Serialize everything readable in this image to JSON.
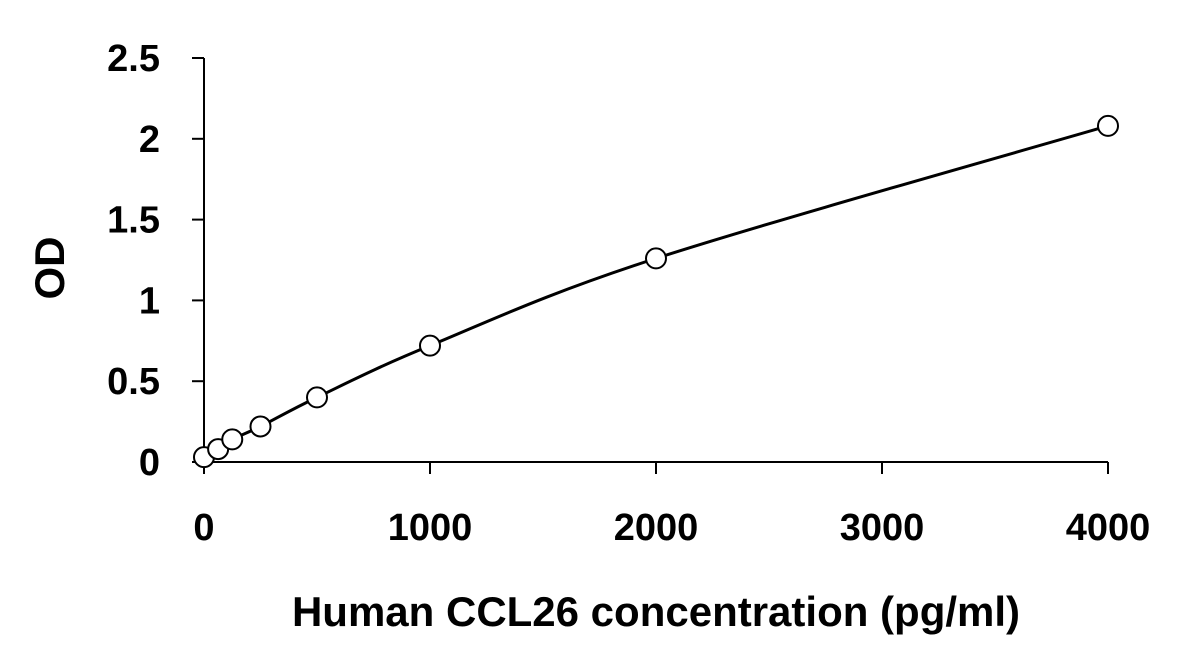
{
  "chart_data": {
    "type": "scatter",
    "title": "",
    "xlabel": "Human CCL26 concentration (pg/ml)",
    "ylabel": "OD",
    "xlim": [
      0,
      4000
    ],
    "ylim": [
      0,
      2.5
    ],
    "x_ticks": [
      0,
      1000,
      2000,
      3000,
      4000
    ],
    "x_tick_labels": [
      "0",
      "1000",
      "2000",
      "3000",
      "4000"
    ],
    "y_ticks": [
      0,
      0.5,
      1,
      1.5,
      2,
      2.5
    ],
    "y_tick_labels": [
      "0",
      "0.5",
      "1",
      "1.5",
      "2",
      "2.5"
    ],
    "grid": false,
    "legend": "none",
    "series": [
      {
        "x": [
          0,
          62.5,
          125,
          250,
          500,
          1000,
          2000,
          4000
        ],
        "y": [
          0.03,
          0.08,
          0.14,
          0.22,
          0.4,
          0.72,
          1.26,
          2.08
        ],
        "marker": "open-circle",
        "fit_line": "smooth curve"
      }
    ],
    "colors": {
      "line": "#000000",
      "marker_edge": "#000000",
      "marker_fill": "#ffffff"
    }
  }
}
